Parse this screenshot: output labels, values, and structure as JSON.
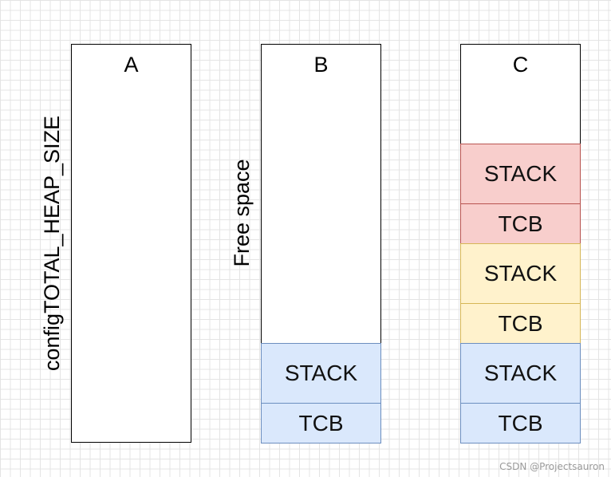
{
  "columns": {
    "a": {
      "label": "A"
    },
    "b": {
      "label": "B"
    },
    "c": {
      "label": "C"
    }
  },
  "labels": {
    "heap": "configTOTAL_HEAP_SIZE",
    "free": "Free space"
  },
  "blocks": {
    "b": [
      {
        "label": "STACK",
        "color": "blue"
      },
      {
        "label": "TCB",
        "color": "blue"
      }
    ],
    "c": [
      {
        "label": "STACK",
        "color": "red"
      },
      {
        "label": "TCB",
        "color": "red"
      },
      {
        "label": "STACK",
        "color": "yellow"
      },
      {
        "label": "TCB",
        "color": "yellow"
      },
      {
        "label": "STACK",
        "color": "blue"
      },
      {
        "label": "TCB",
        "color": "blue"
      }
    ]
  },
  "colors": {
    "red_fill": "#f8cecc",
    "red_stroke": "#b85450",
    "yellow_fill": "#fff2cc",
    "yellow_stroke": "#d6b656",
    "blue_fill": "#dae8fc",
    "blue_stroke": "#6c8ebf"
  },
  "watermark": "CSDN @Projectsauron"
}
